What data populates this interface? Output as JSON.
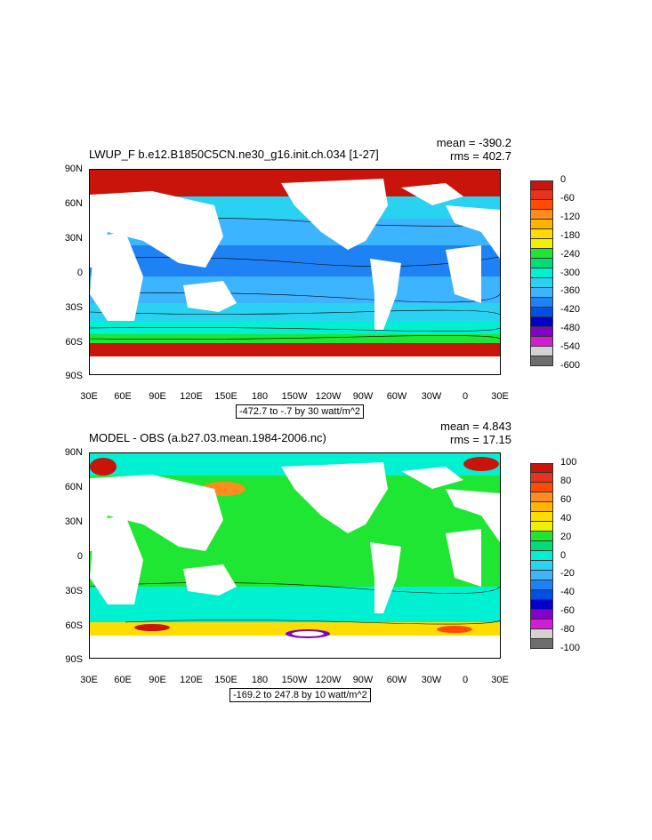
{
  "panels": [
    {
      "title": "LWUP_F b.e12.B1850C5CN.ne30_g16.init.ch.034 [1-27]",
      "mean": "mean = -390.2",
      "rms": "rms = 402.7",
      "lat_labels": [
        "90N",
        "60N",
        "30N",
        "0",
        "30S",
        "60S",
        "90S"
      ],
      "lon_labels": [
        "30E",
        "60E",
        "90E",
        "120E",
        "150E",
        "180",
        "150W",
        "120W",
        "90W",
        "60W",
        "30W",
        "0",
        "30E"
      ],
      "info": "-472.7 to -.7 by 30 watt/m^2",
      "colorbar_labels": [
        "0",
        "-60",
        "-120",
        "-180",
        "-240",
        "-300",
        "-360",
        "-420",
        "-480",
        "-540",
        "-600"
      ],
      "colorbar_colors": [
        "#c8140a",
        "#e6321e",
        "#ff4b00",
        "#ff8c1e",
        "#ffb400",
        "#ffdc00",
        "#f0f000",
        "#1ee632",
        "#00dc78",
        "#00f0d2",
        "#28d2f0",
        "#3cb4ff",
        "#1e82f5",
        "#0050e6",
        "#0000c8",
        "#8200c8",
        "#d21ed2",
        "#d2d2d2",
        "#6e6e6e"
      ]
    },
    {
      "title": "MODEL - OBS (a.b27.03.mean.1984-2006.nc)",
      "mean": "mean = 4.843",
      "rms": "rms = 17.15",
      "lat_labels": [
        "90N",
        "60N",
        "30N",
        "0",
        "30S",
        "60S",
        "90S"
      ],
      "lon_labels": [
        "30E",
        "60E",
        "90E",
        "120E",
        "150E",
        "180",
        "150W",
        "120W",
        "90W",
        "60W",
        "30W",
        "0",
        "30E"
      ],
      "info": "-169.2 to 247.8 by 10 watt/m^2",
      "colorbar_labels": [
        "100",
        "80",
        "60",
        "40",
        "20",
        "0",
        "-20",
        "-40",
        "-60",
        "-80",
        "-100"
      ],
      "colorbar_colors": [
        "#c8140a",
        "#e6321e",
        "#ff4b00",
        "#ff8c1e",
        "#ffb400",
        "#ffdc00",
        "#f0f000",
        "#1ee632",
        "#00dc78",
        "#00f0d2",
        "#28d2f0",
        "#3cb4ff",
        "#1e82f5",
        "#0050e6",
        "#0000c8",
        "#8200c8",
        "#d21ed2",
        "#d2d2d2",
        "#6e6e6e"
      ]
    }
  ]
}
